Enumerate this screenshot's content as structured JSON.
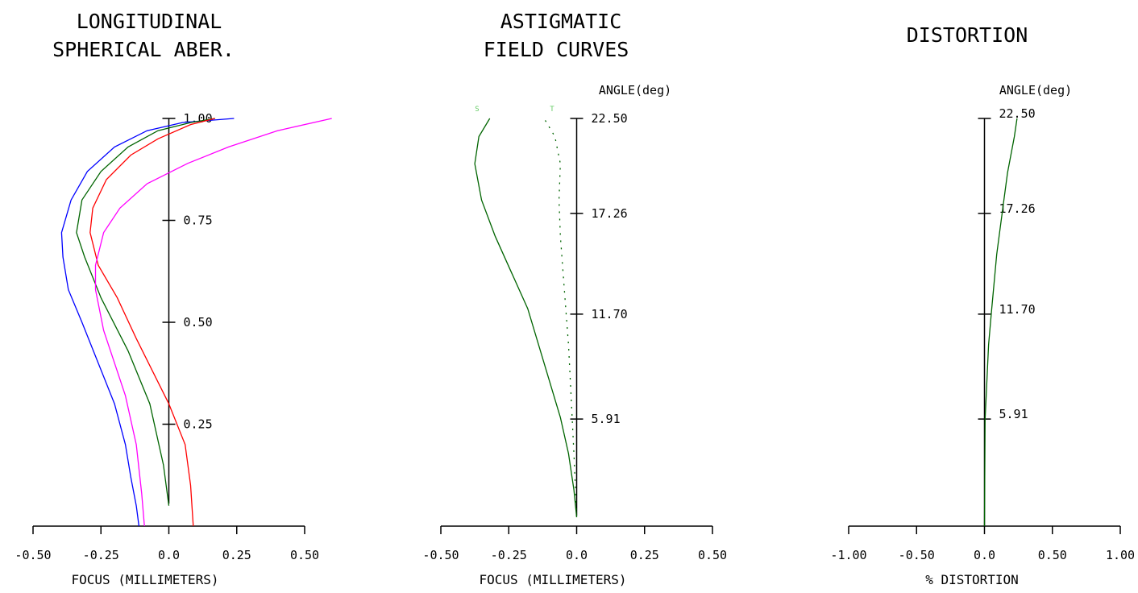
{
  "chart_data": [
    {
      "type": "line",
      "title_lines": [
        "LONGITUDINAL",
        "SPHERICAL ABER."
      ],
      "xlabel": "FOCUS (MILLIMETERS)",
      "xlim": [
        -0.5,
        0.5
      ],
      "xticks": [
        "-0.50",
        "-0.25",
        "0.0",
        "0.25",
        "0.50"
      ],
      "ylim": [
        0,
        1
      ],
      "yticks": [
        {
          "value": 0.25,
          "label": "0.25"
        },
        {
          "value": 0.5,
          "label": "0.50"
        },
        {
          "value": 0.75,
          "label": "0.75"
        },
        {
          "value": 1.0,
          "label": "1.00"
        }
      ],
      "series": [
        {
          "color": "#0000ff",
          "points": [
            [
              -0.11,
              0
            ],
            [
              -0.12,
              0.05
            ],
            [
              -0.14,
              0.12
            ],
            [
              -0.16,
              0.2
            ],
            [
              -0.2,
              0.3
            ],
            [
              -0.26,
              0.4
            ],
            [
              -0.32,
              0.5
            ],
            [
              -0.37,
              0.58
            ],
            [
              -0.39,
              0.66
            ],
            [
              -0.395,
              0.72
            ],
            [
              -0.36,
              0.8
            ],
            [
              -0.3,
              0.87
            ],
            [
              -0.2,
              0.93
            ],
            [
              -0.08,
              0.97
            ],
            [
              0.05,
              0.99
            ],
            [
              0.24,
              1.0
            ]
          ]
        },
        {
          "color": "#006400",
          "points": [
            [
              0.0,
              0.05
            ],
            [
              -0.02,
              0.15
            ],
            [
              -0.07,
              0.3
            ],
            [
              -0.15,
              0.43
            ],
            [
              -0.25,
              0.56
            ],
            [
              -0.31,
              0.66
            ],
            [
              -0.34,
              0.72
            ],
            [
              -0.32,
              0.8
            ],
            [
              -0.25,
              0.87
            ],
            [
              -0.15,
              0.93
            ],
            [
              -0.04,
              0.97
            ],
            [
              0.08,
              0.99
            ],
            [
              0.17,
              1.0
            ]
          ]
        },
        {
          "color": "#ff0000",
          "points": [
            [
              0.09,
              0
            ],
            [
              0.08,
              0.1
            ],
            [
              0.06,
              0.2
            ],
            [
              0.0,
              0.3
            ],
            [
              -0.06,
              0.38
            ],
            [
              -0.12,
              0.46
            ],
            [
              -0.19,
              0.56
            ],
            [
              -0.26,
              0.64
            ],
            [
              -0.29,
              0.72
            ],
            [
              -0.28,
              0.78
            ],
            [
              -0.23,
              0.85
            ],
            [
              -0.14,
              0.91
            ],
            [
              -0.04,
              0.95
            ],
            [
              0.08,
              0.985
            ],
            [
              0.17,
              1.0
            ]
          ]
        },
        {
          "color": "#ff00ff",
          "points": [
            [
              -0.09,
              0
            ],
            [
              -0.1,
              0.08
            ],
            [
              -0.12,
              0.2
            ],
            [
              -0.16,
              0.32
            ],
            [
              -0.24,
              0.48
            ],
            [
              -0.27,
              0.58
            ],
            [
              -0.27,
              0.64
            ],
            [
              -0.24,
              0.72
            ],
            [
              -0.18,
              0.78
            ],
            [
              -0.08,
              0.84
            ],
            [
              0.07,
              0.89
            ],
            [
              0.22,
              0.93
            ],
            [
              0.4,
              0.97
            ],
            [
              0.6,
              1.0
            ]
          ]
        }
      ]
    },
    {
      "type": "line",
      "title_lines": [
        "ASTIGMATIC",
        "FIELD CURVES"
      ],
      "xlabel": "FOCUS (MILLIMETERS)",
      "angle_label": "ANGLE(deg)",
      "xlim": [
        -0.5,
        0.5
      ],
      "xticks": [
        "-0.50",
        "-0.25",
        "0.0",
        "0.25",
        "0.50"
      ],
      "ylim": [
        0,
        22.5
      ],
      "yticks": [
        {
          "value": 5.91,
          "label": "5.91"
        },
        {
          "value": 11.7,
          "label": "11.70"
        },
        {
          "value": 17.26,
          "label": "17.26"
        },
        {
          "value": 22.5,
          "label": "22.50"
        }
      ],
      "curve_labels": [
        "S",
        "T"
      ],
      "series": [
        {
          "name": "S",
          "color": "#006400",
          "dashed": false,
          "points": [
            [
              0.0,
              0.5
            ],
            [
              -0.01,
              2
            ],
            [
              -0.03,
              4
            ],
            [
              -0.06,
              6
            ],
            [
              -0.1,
              8
            ],
            [
              -0.14,
              10
            ],
            [
              -0.18,
              12
            ],
            [
              -0.24,
              14
            ],
            [
              -0.3,
              16
            ],
            [
              -0.35,
              18
            ],
            [
              -0.375,
              20
            ],
            [
              -0.36,
              21.5
            ],
            [
              -0.32,
              22.5
            ]
          ]
        },
        {
          "name": "T",
          "color": "#006400",
          "dashed": true,
          "points": [
            [
              0.0,
              0.5
            ],
            [
              -0.01,
              4
            ],
            [
              -0.02,
              7
            ],
            [
              -0.03,
              10
            ],
            [
              -0.045,
              13
            ],
            [
              -0.06,
              16
            ],
            [
              -0.065,
              18
            ],
            [
              -0.06,
              20
            ],
            [
              -0.08,
              21.5
            ],
            [
              -0.12,
              22.5
            ]
          ]
        }
      ]
    },
    {
      "type": "line",
      "title_lines": [
        "DISTORTION"
      ],
      "xlabel": "% DISTORTION",
      "angle_label": "ANGLE(deg)",
      "xlim": [
        -1.0,
        1.0
      ],
      "xticks": [
        "-1.00",
        "-0.50",
        "0.0",
        "0.50",
        "1.00"
      ],
      "ylim": [
        0,
        22.5
      ],
      "yticks": [
        {
          "value": 5.91,
          "label": "5.91"
        },
        {
          "value": 11.7,
          "label": "11.70"
        },
        {
          "value": 17.26,
          "label": "17.26"
        },
        {
          "value": 22.5,
          "label": "22.50"
        }
      ],
      "series": [
        {
          "color": "#006400",
          "points": [
            [
              0,
              0
            ],
            [
              0.005,
              5.91
            ],
            [
              0.03,
              10
            ],
            [
              0.05,
              11.7
            ],
            [
              0.09,
              15
            ],
            [
              0.13,
              17.26
            ],
            [
              0.17,
              19.5
            ],
            [
              0.22,
              21.5
            ],
            [
              0.24,
              22.5
            ]
          ]
        }
      ]
    }
  ]
}
